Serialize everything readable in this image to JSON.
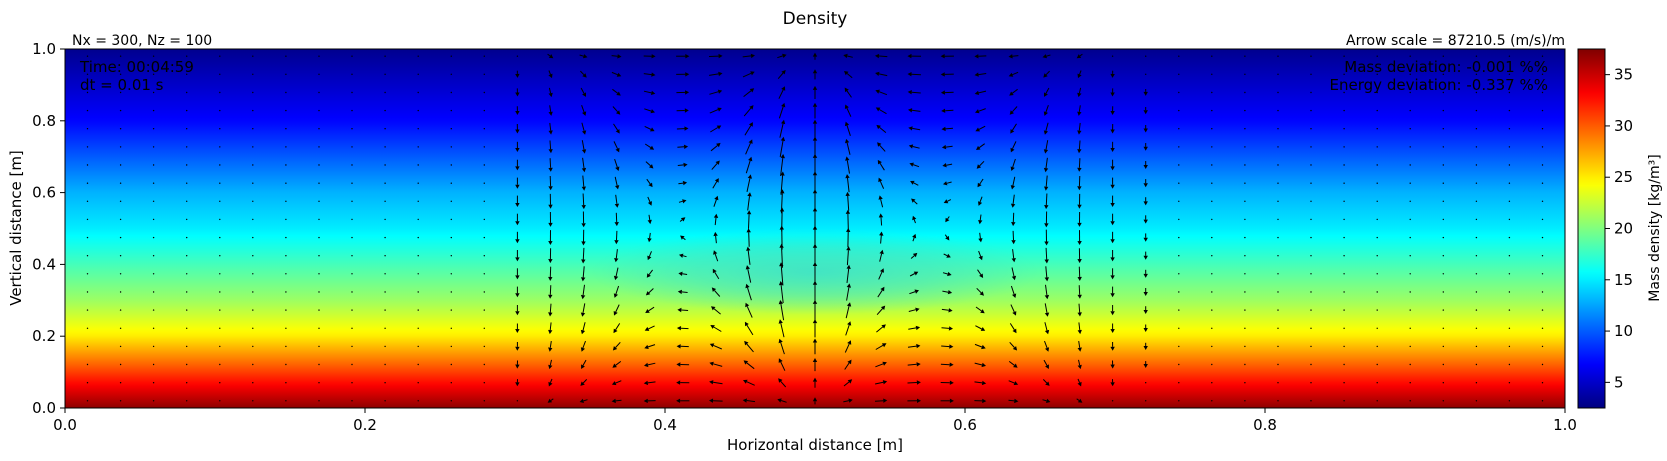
{
  "chart_data": {
    "type": "heatmap",
    "title": "Density",
    "subtitle_left": "Nx = 300, Nz = 100",
    "subtitle_right": "Arrow scale = 87210.5 (m/s)/m",
    "xlabel": "Horizontal distance [m]",
    "ylabel": "Vertical distance [m]",
    "xlim": [
      0.0,
      1.0
    ],
    "ylim": [
      0.0,
      1.0
    ],
    "xticks": [
      "0.0",
      "0.2",
      "0.4",
      "0.6",
      "0.8",
      "1.0"
    ],
    "yticks": [
      "0.0",
      "0.2",
      "0.4",
      "0.6",
      "0.8",
      "1.0"
    ],
    "annotations": {
      "time": "Time: 00:04:59",
      "dt": "dt = 0.01 s",
      "mass_deviation": "Mass deviation: -0.001 %%",
      "energy_deviation": "Energy deviation: -0.337 %%"
    },
    "colorbar": {
      "label": "Mass density [kg/m³]",
      "min": 2.5,
      "max": 37.5,
      "ticks": [
        "5",
        "10",
        "15",
        "20",
        "25",
        "30",
        "35"
      ],
      "tick_values": [
        5,
        10,
        15,
        20,
        25,
        30,
        35
      ],
      "colormap": "jet"
    },
    "density_profile": {
      "z": [
        0.0,
        0.1,
        0.2,
        0.3,
        0.4,
        0.5,
        0.6,
        0.7,
        0.8,
        0.9,
        1.0
      ],
      "rho": [
        37,
        31,
        25,
        21,
        18,
        15,
        13,
        10,
        7,
        5,
        3
      ]
    },
    "anomaly": {
      "x_center": 0.5,
      "z_center": 0.38,
      "delta_rho": -4.5,
      "width_x": 0.15,
      "width_z": 0.12
    },
    "vortices": [
      {
        "x": 0.4,
        "z": 0.3,
        "sense": "clockwise"
      },
      {
        "x": 0.6,
        "z": 0.3,
        "sense": "counterclockwise"
      }
    ],
    "velocity_field": {
      "x_range": [
        0.3,
        0.72
      ],
      "z_range": [
        0.02,
        0.98
      ],
      "peak_x": 0.49,
      "peak_z": 0.45,
      "direction": "upward at center"
    }
  }
}
